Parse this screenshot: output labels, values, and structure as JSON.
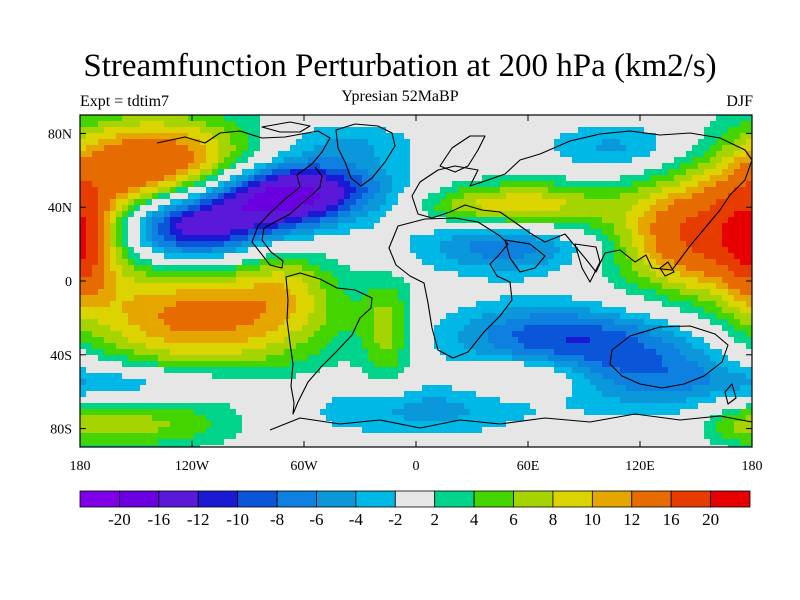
{
  "header": {
    "title": "Streamfunction Perturbation at 200 hPa (km2/s)",
    "experiment": "Expt = tdtim7",
    "period": "Ypresian  52MaBP",
    "season": "DJF"
  },
  "axes": {
    "lat_ticks": [
      {
        "label": "80N",
        "lat": 80
      },
      {
        "label": "40N",
        "lat": 40
      },
      {
        "label": "0",
        "lat": 0
      },
      {
        "label": "40S",
        "lat": -40
      },
      {
        "label": "80S",
        "lat": -80
      }
    ],
    "lon_ticks": [
      {
        "label": "180",
        "lon": -180
      },
      {
        "label": "120W",
        "lon": -120
      },
      {
        "label": "60W",
        "lon": -60
      },
      {
        "label": "0",
        "lon": 0
      },
      {
        "label": "60E",
        "lon": 60
      },
      {
        "label": "120E",
        "lon": 120
      },
      {
        "label": "180",
        "lon": 180
      }
    ],
    "lon_range": [
      -180,
      180
    ],
    "lat_range": [
      -90,
      90
    ]
  },
  "colorbar": {
    "colors": [
      "#7f00e6",
      "#6a00e0",
      "#5a18d8",
      "#1a1ad4",
      "#0b55d8",
      "#0d80e0",
      "#0a98da",
      "#00b8e6",
      "#e6e6e6",
      "#00d48a",
      "#44d400",
      "#a6d400",
      "#dcd400",
      "#e6a600",
      "#e66b00",
      "#e63c00",
      "#e60000"
    ],
    "labels": [
      "-20",
      "-16",
      "-12",
      "-10",
      "-8",
      "-6",
      "-4",
      "-2",
      "2",
      "4",
      "6",
      "8",
      "10",
      "12",
      "16",
      "20"
    ]
  },
  "map": {
    "blobs": [
      {
        "lon": -140,
        "lat": 62,
        "rx": 55,
        "ry": 28,
        "peak": 16
      },
      {
        "lon": -115,
        "lat": -20,
        "rx": 70,
        "ry": 30,
        "peak": 13
      },
      {
        "lon": 155,
        "lat": 25,
        "rx": 50,
        "ry": 30,
        "peak": 17
      },
      {
        "lon": -180,
        "lat": 20,
        "rx": 15,
        "ry": 30,
        "peak": 9
      },
      {
        "lon": 65,
        "lat": 40,
        "rx": 35,
        "ry": 14,
        "peak": 9
      },
      {
        "lon": 25,
        "lat": 40,
        "rx": 30,
        "ry": 12,
        "peak": 6
      },
      {
        "lon": -15,
        "lat": -28,
        "rx": 14,
        "ry": 30,
        "peak": 6
      },
      {
        "lon": 60,
        "lat": -52,
        "rx": 28,
        "ry": 10,
        "peak": 5
      },
      {
        "lon": -140,
        "lat": -78,
        "rx": 45,
        "ry": 14,
        "peak": 6
      },
      {
        "lon": 175,
        "lat": -78,
        "rx": 25,
        "ry": 12,
        "peak": 5
      },
      {
        "lon": -70,
        "lat": 0,
        "rx": 25,
        "ry": 22,
        "peak": 4
      },
      {
        "lon": -125,
        "lat": 30,
        "rx": 38,
        "ry": 20,
        "peak": -17
      },
      {
        "lon": -60,
        "lat": 50,
        "rx": 45,
        "ry": 16,
        "peak": -13
      },
      {
        "lon": -80,
        "lat": 40,
        "rx": 35,
        "ry": 18,
        "peak": -10
      },
      {
        "lon": 50,
        "lat": 20,
        "rx": 50,
        "ry": 16,
        "peak": -8
      },
      {
        "lon": 75,
        "lat": -30,
        "rx": 60,
        "ry": 18,
        "peak": -9
      },
      {
        "lon": 130,
        "lat": -50,
        "rx": 50,
        "ry": 22,
        "peak": -7
      },
      {
        "lon": 0,
        "lat": -70,
        "rx": 60,
        "ry": 14,
        "peak": -5
      },
      {
        "lon": -150,
        "lat": -55,
        "rx": 50,
        "ry": 10,
        "peak": -5
      },
      {
        "lon": 110,
        "lat": 72,
        "rx": 40,
        "ry": 14,
        "peak": -5
      },
      {
        "lon": -40,
        "lat": 75,
        "rx": 40,
        "ry": 12,
        "peak": -4
      }
    ]
  }
}
